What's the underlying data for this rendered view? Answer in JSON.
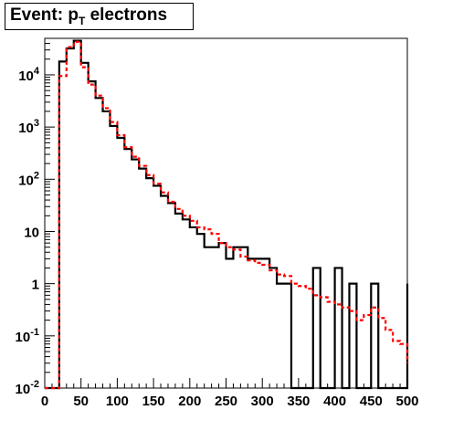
{
  "chart_data": {
    "type": "step-histogram",
    "title": {
      "prefix": "Event: p",
      "subscript": "T",
      "suffix": " electrons"
    },
    "xlim": [
      0,
      500
    ],
    "ylim": [
      0.01,
      50000
    ],
    "log_y": true,
    "x_ticks": [
      "0",
      "50",
      "100",
      "150",
      "200",
      "250",
      "300",
      "350",
      "400",
      "450",
      "500"
    ],
    "y_ticks": [
      {
        "value": 0.01,
        "base": "10",
        "exp": "-2"
      },
      {
        "value": 0.1,
        "base": "10",
        "exp": "-1"
      },
      {
        "value": 1,
        "base": "1",
        "exp": ""
      },
      {
        "value": 10,
        "base": "10",
        "exp": ""
      },
      {
        "value": 100,
        "base": "10",
        "exp": "2"
      },
      {
        "value": 1000,
        "base": "10",
        "exp": "3"
      },
      {
        "value": 10000,
        "base": "10",
        "exp": "4"
      }
    ],
    "bin_width": 10,
    "x_start": 0,
    "series": [
      {
        "style": "solid",
        "color": "#000000",
        "values": [
          0,
          0,
          18000,
          32000,
          45000,
          17000,
          7500,
          3600,
          2000,
          1050,
          620,
          380,
          240,
          160,
          105,
          75,
          48,
          35,
          22,
          17,
          12,
          9,
          5,
          5,
          6,
          3,
          5,
          5,
          3,
          3,
          3,
          2,
          1,
          1,
          0,
          0,
          0,
          2,
          0,
          0,
          2,
          0,
          1,
          0,
          0,
          1,
          0,
          0,
          0,
          0,
          1
        ]
      },
      {
        "style": "dashed",
        "color": "#ff0000",
        "values": [
          0,
          0,
          9500,
          34000,
          43000,
          14000,
          6500,
          4000,
          2300,
          1250,
          700,
          410,
          270,
          180,
          120,
          82,
          56,
          37,
          27,
          20,
          16,
          12,
          11,
          9,
          6,
          5,
          4.5,
          3.3,
          2.8,
          2.5,
          2.3,
          1.8,
          1.5,
          1.4,
          1.0,
          0.9,
          0.8,
          0.6,
          0.55,
          0.45,
          0.4,
          0.35,
          0.3,
          0.2,
          0.25,
          0.35,
          0.22,
          0.13,
          0.08,
          0.07,
          0.03
        ]
      }
    ]
  }
}
